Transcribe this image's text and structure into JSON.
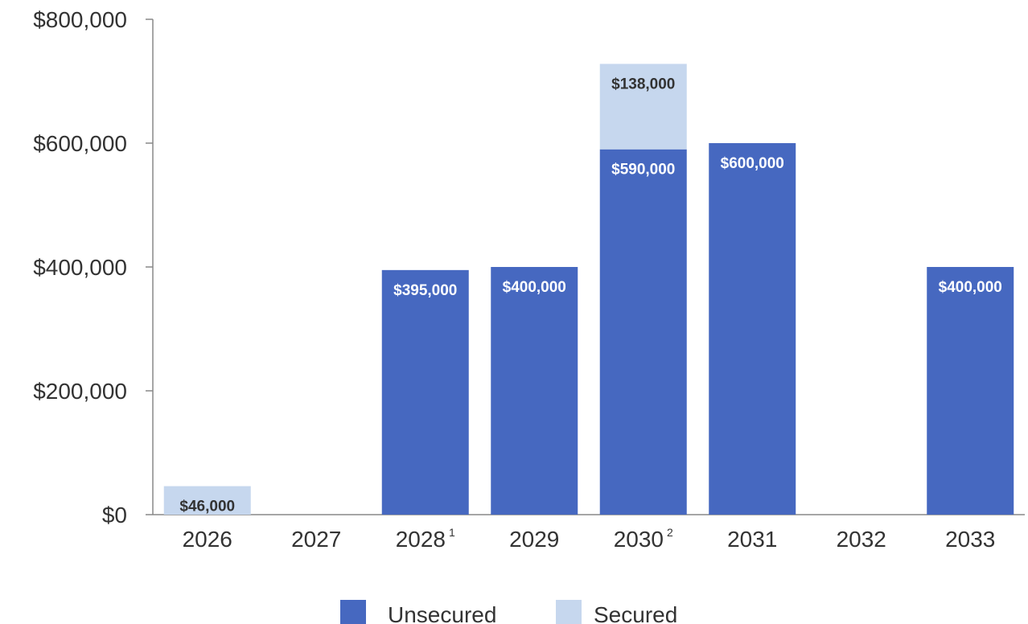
{
  "chart_data": {
    "type": "bar",
    "stacked": true,
    "categories": [
      "2026",
      "2027",
      "2028",
      "2029",
      "2030",
      "2031",
      "2032",
      "2033"
    ],
    "category_footnotes": [
      "",
      "",
      "1",
      "",
      "2",
      "",
      "",
      ""
    ],
    "series": [
      {
        "name": "Unsecured",
        "color": "#4668c0",
        "values": [
          0,
          0,
          395000,
          400000,
          590000,
          600000,
          0,
          400000
        ],
        "labels": [
          "",
          "",
          "$395,000",
          "$400,000",
          "$590,000",
          "$600,000",
          "",
          "$400,000"
        ],
        "label_color": "#ffffff"
      },
      {
        "name": "Secured",
        "color": "#c6d7ee",
        "values": [
          46000,
          0,
          0,
          0,
          138000,
          0,
          0,
          0
        ],
        "labels": [
          "$46,000",
          "",
          "",
          "",
          "$138,000",
          "",
          "",
          ""
        ],
        "label_color": "#333333"
      }
    ],
    "yticks": [
      0,
      200000,
      400000,
      600000,
      800000
    ],
    "ytick_labels": [
      "$0",
      "$200,000",
      "$400,000",
      "$600,000",
      "$800,000"
    ],
    "ylim": [
      0,
      800000
    ],
    "legend": [
      "Unsecured",
      "Secured"
    ],
    "legend_position": "bottom-center",
    "grid": false
  }
}
